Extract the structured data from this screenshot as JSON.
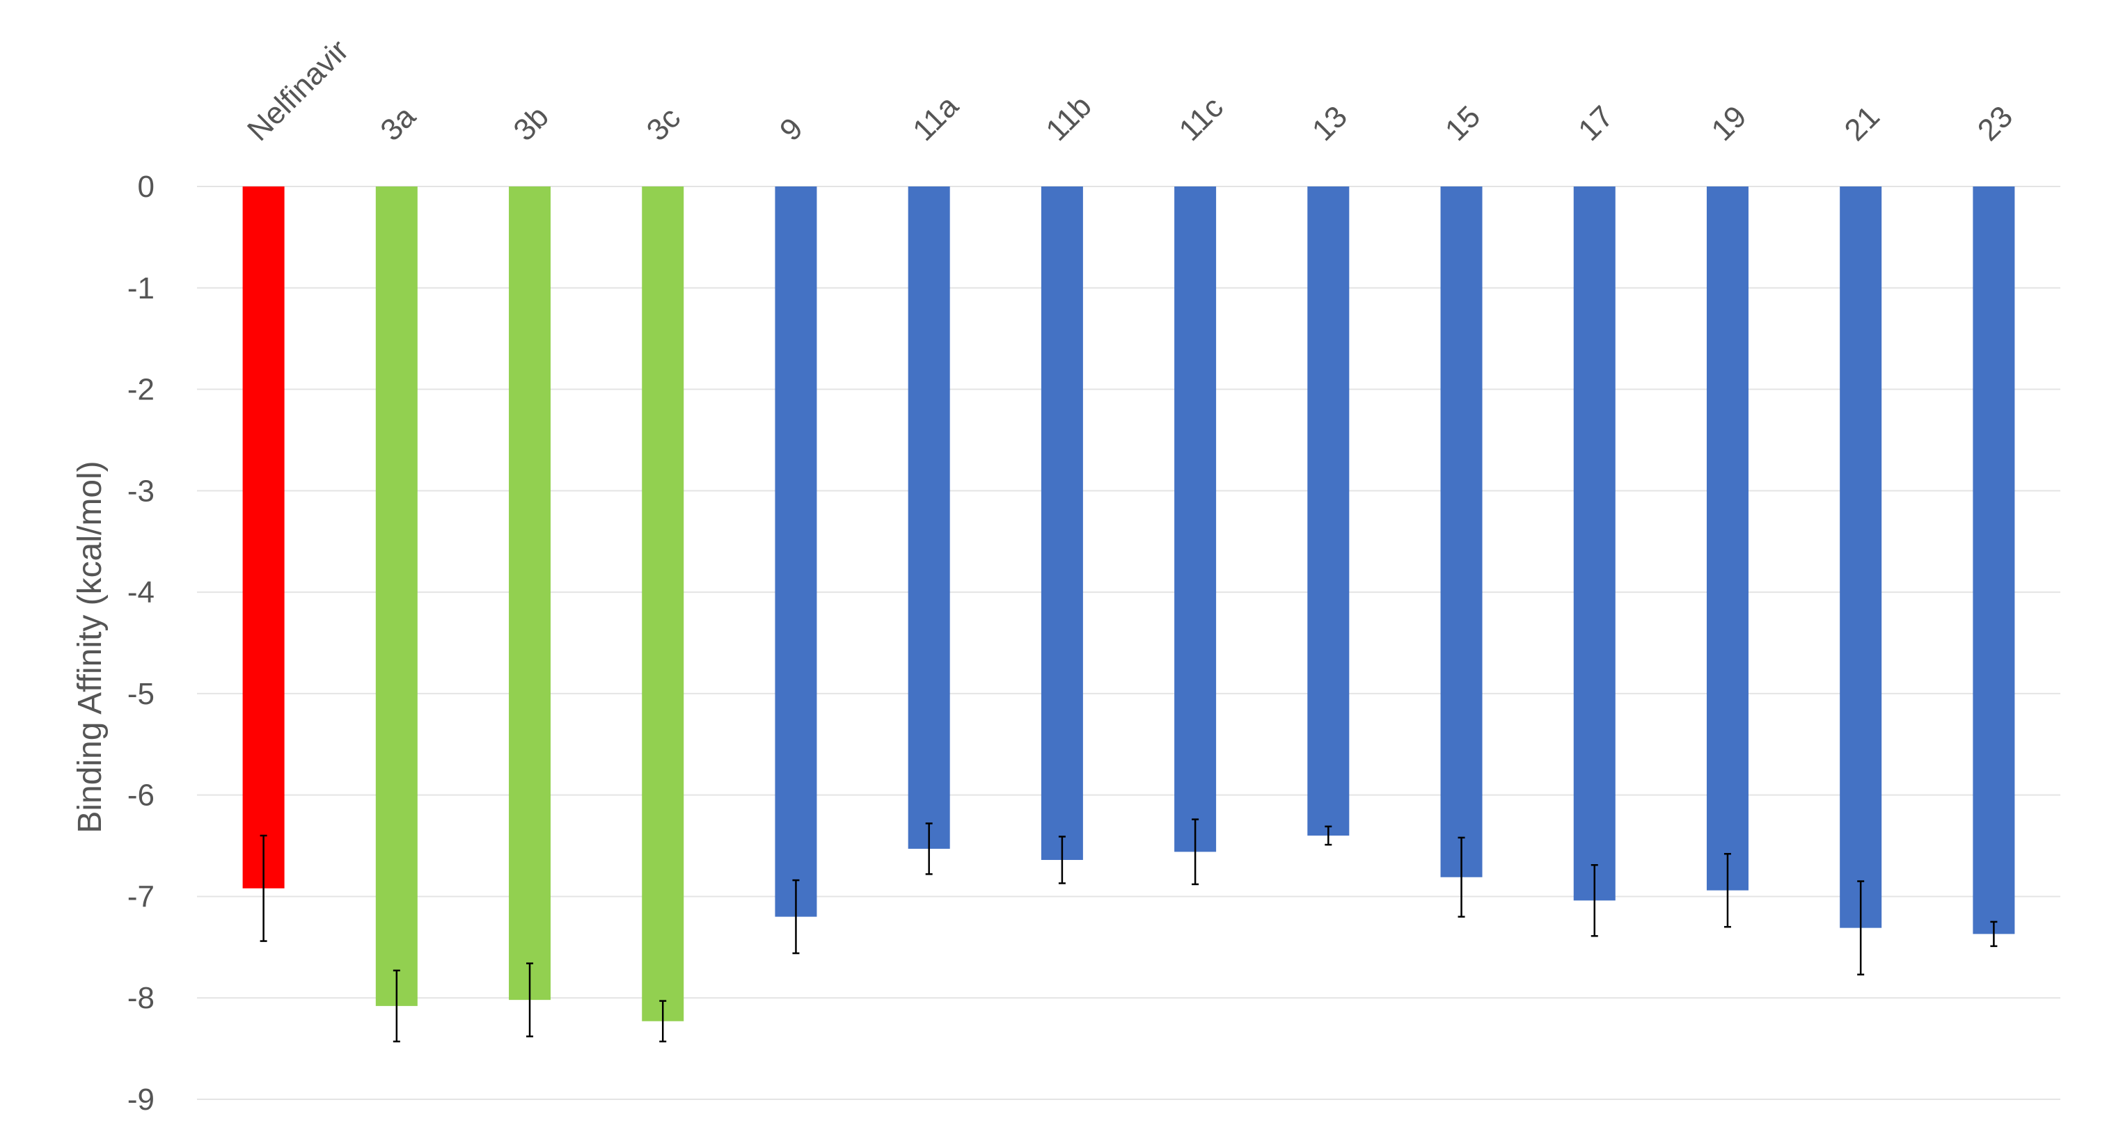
{
  "chart_data": {
    "type": "bar",
    "title": "",
    "xlabel": "",
    "ylabel": "Binding Affinity (kcal/mol)",
    "ylim": [
      -9,
      0
    ],
    "yticks": [
      0,
      -1,
      -2,
      -3,
      -4,
      -5,
      -6,
      -7,
      -8,
      -9
    ],
    "grid": true,
    "x_axis_position": "top",
    "categories": [
      "Nelfinavir",
      "3a",
      "3b",
      "3c",
      "9",
      "11a",
      "11b",
      "11c",
      "13",
      "15",
      "17",
      "19",
      "21",
      "23"
    ],
    "values": [
      -6.92,
      -8.08,
      -8.02,
      -8.23,
      -7.2,
      -6.53,
      -6.64,
      -6.56,
      -6.4,
      -6.81,
      -7.04,
      -6.94,
      -7.31,
      -7.37
    ],
    "errors": [
      0.52,
      0.35,
      0.36,
      0.2,
      0.36,
      0.25,
      0.23,
      0.32,
      0.09,
      0.39,
      0.35,
      0.36,
      0.46,
      0.12
    ],
    "colors": [
      "#ff0000",
      "#92d050",
      "#92d050",
      "#92d050",
      "#4472c4",
      "#4472c4",
      "#4472c4",
      "#4472c4",
      "#4472c4",
      "#4472c4",
      "#4472c4",
      "#4472c4",
      "#4472c4",
      "#4472c4"
    ]
  }
}
